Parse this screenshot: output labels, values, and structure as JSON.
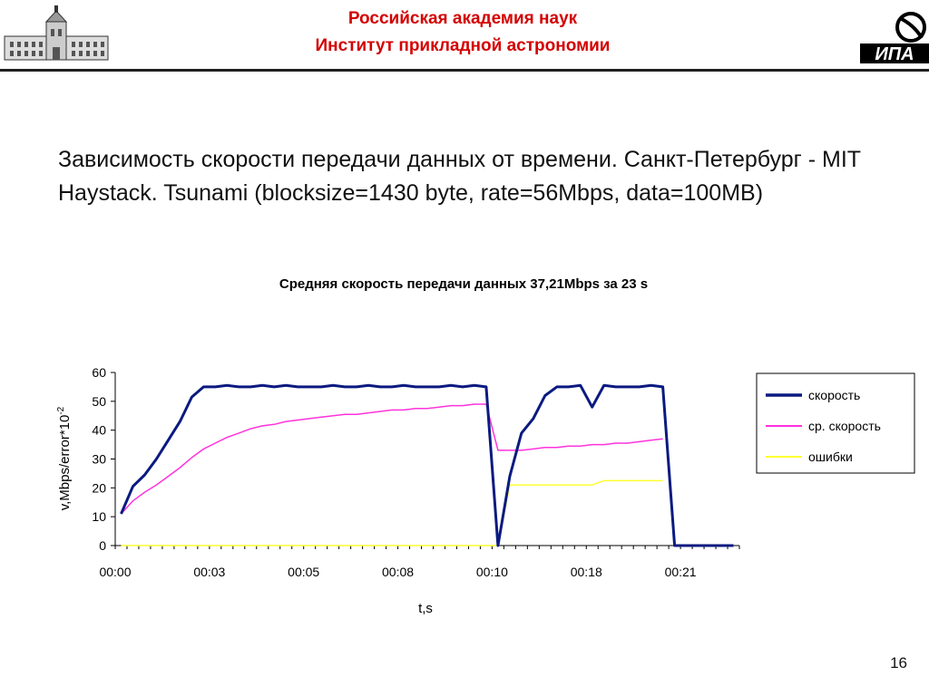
{
  "header": {
    "org_line1": "Российская академия наук",
    "org_line2": "Институт прикладной астрономии",
    "logo_text": "ИПА"
  },
  "slide": {
    "title": "Зависимость скорости передачи данных от времени. Санкт-Петербург - MIT Haystack. Tsunami (blocksize=1430 byte, rate=56Mbps, data=100MB)",
    "page_number": "16"
  },
  "chart_data": {
    "type": "line",
    "title": "Средняя скорость передачи данных 37,21Mbps за 23 s",
    "xlabel": "t,s",
    "ylabel": "v,Mbps/error*10",
    "ylabel_sup": "-2",
    "ylim": [
      0,
      60
    ],
    "yticks": [
      0,
      10,
      20,
      30,
      40,
      50,
      60
    ],
    "x_tick_labels": [
      "00:00",
      "00:03",
      "00:05",
      "00:08",
      "00:10",
      "00:18",
      "00:21"
    ],
    "x_tick_index": [
      0,
      8,
      16,
      24,
      32,
      40,
      48
    ],
    "x_count": 53,
    "grid": false,
    "legend": "right",
    "series": [
      {
        "name": "скорость",
        "color": "#0a1a80",
        "values": [
          11,
          20.5,
          24.5,
          30,
          36.5,
          43,
          51.5,
          55,
          55,
          55.5,
          55,
          55,
          55.5,
          55,
          55.5,
          55,
          55,
          55,
          55.5,
          55,
          55,
          55.5,
          55,
          55,
          55.5,
          55,
          55,
          55,
          55.5,
          55,
          55.5,
          55,
          0,
          24,
          39,
          44,
          52,
          55,
          55,
          55.5,
          48,
          55.5,
          55,
          55,
          55,
          55.5,
          55,
          0,
          0,
          0,
          0,
          0,
          0
        ]
      },
      {
        "name": "ср. скорость",
        "color": "#ff33dd",
        "values": [
          11,
          15.5,
          18.5,
          21,
          24,
          27,
          30.5,
          33.5,
          35.5,
          37.5,
          39,
          40.5,
          41.5,
          42,
          43,
          43.5,
          44,
          44.5,
          45,
          45.5,
          45.5,
          46,
          46.5,
          47,
          47,
          47.5,
          47.5,
          48,
          48.5,
          48.5,
          49,
          49,
          33,
          33,
          33,
          33.5,
          34,
          34,
          34.5,
          34.5,
          35,
          35,
          35.5,
          35.5,
          36,
          36.5,
          37,
          null,
          null,
          null,
          null,
          null,
          null
        ]
      },
      {
        "name": "ошибки",
        "color": "#ffff33",
        "values": [
          0,
          0,
          0,
          0,
          0,
          0,
          0,
          0,
          0,
          0,
          0,
          0,
          0,
          0,
          0,
          0,
          0,
          0,
          0,
          0,
          0,
          0,
          0,
          0,
          0,
          0,
          0,
          0,
          0,
          0,
          0,
          0,
          0,
          21,
          21,
          21,
          21,
          21,
          21,
          21,
          21,
          22.5,
          22.5,
          22.5,
          22.5,
          22.5,
          22.5,
          null,
          null,
          null,
          null,
          null,
          null
        ]
      }
    ]
  }
}
